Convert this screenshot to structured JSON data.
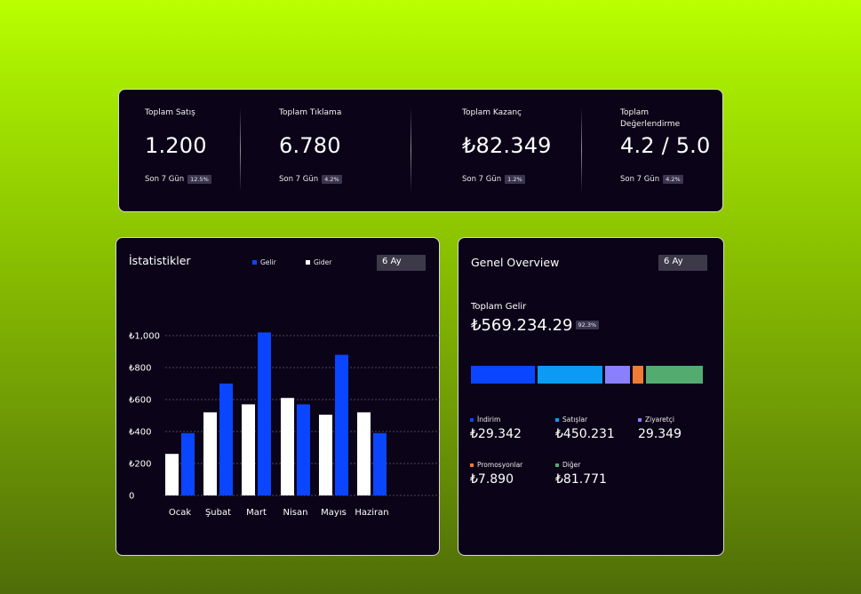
{
  "stats": [
    {
      "label": "Toplam Satış",
      "value": "1.200",
      "period": "Son 7 Gün",
      "change": "12.5%"
    },
    {
      "label": "Toplam Tıklama",
      "value": "6.780",
      "period": "Son 7 Gün",
      "change": "4.2%"
    },
    {
      "label": "Toplam Kazanç",
      "value": "₺82.349",
      "period": "Son 7 Gün",
      "change": "1.2%"
    },
    {
      "label": "Toplam Değerlendirme",
      "value": "4.2 / 5.0",
      "period": "Son 7 Gün",
      "change": "4.2%"
    }
  ],
  "statistics": {
    "title": "İstatistikler",
    "range": "6 Ay",
    "legend": {
      "income": "Gelir",
      "expense": "Gider"
    }
  },
  "overview": {
    "title": "Genel Overview",
    "range": "6 Ay",
    "total_label": "Toplam Gelir",
    "total_value": "₺569.234.29",
    "total_change": "92.3%",
    "categories": [
      {
        "name": "İndirim",
        "value": "₺29.342",
        "color": "#0a46ff"
      },
      {
        "name": "Satışlar",
        "value": "₺450.231",
        "color": "#0b9bf5"
      },
      {
        "name": "Ziyaretçi",
        "value": "29.349",
        "color": "#8a80ff"
      },
      {
        "name": "Promosyonlar",
        "value": "₺7.890",
        "color": "#f07b35"
      },
      {
        "name": "Diğer",
        "value": "₺81.771",
        "color": "#54ab6f"
      }
    ],
    "bar_shares": [
      0.285,
      0.29,
      0.11,
      0.05,
      0.255
    ]
  },
  "chart_data": {
    "type": "bar",
    "categories": [
      "Ocak",
      "Şubat",
      "Mart",
      "Nisan",
      "Mayıs",
      "Haziran"
    ],
    "series": [
      {
        "name": "Gider",
        "color": "#ffffff",
        "values": [
          260,
          520,
          570,
          610,
          505,
          520
        ]
      },
      {
        "name": "Gelir",
        "color": "#0a46ff",
        "values": [
          390,
          700,
          1020,
          570,
          880,
          390
        ]
      }
    ],
    "yticks": [
      {
        "value": 0,
        "label": "0"
      },
      {
        "value": 200,
        "label": "₺200"
      },
      {
        "value": 400,
        "label": "₺400"
      },
      {
        "value": 600,
        "label": "₺600"
      },
      {
        "value": 800,
        "label": "₺800"
      },
      {
        "value": 1000,
        "label": "₺1,000"
      }
    ],
    "ylim": [
      0,
      1000
    ],
    "grid": true,
    "legend": "top"
  }
}
